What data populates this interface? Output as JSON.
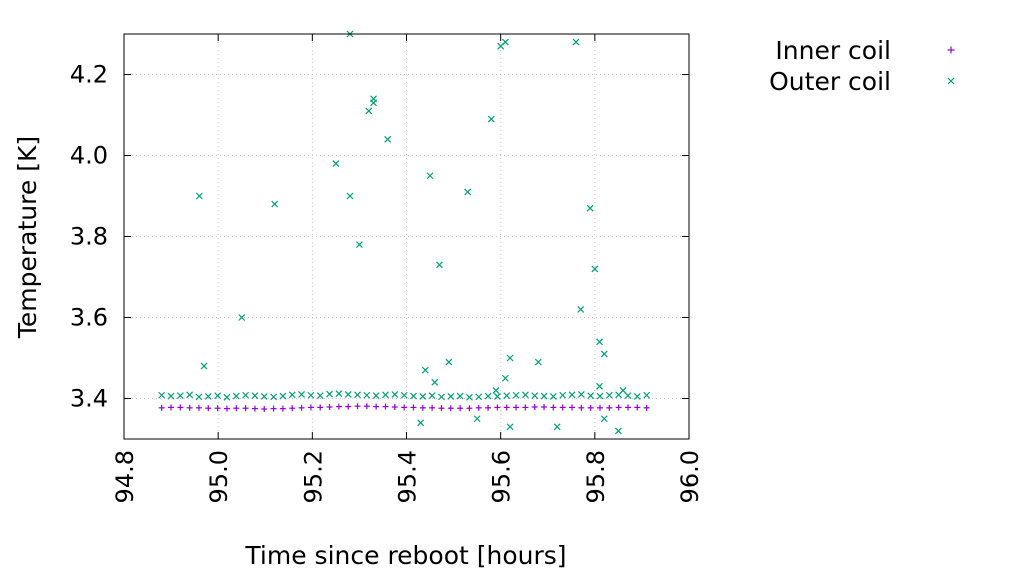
{
  "chart_data": {
    "type": "scatter",
    "xlabel": "Time since reboot [hours]",
    "ylabel": "Temperature [K]",
    "xlim": [
      94.8,
      96.0
    ],
    "ylim": [
      3.3,
      4.3
    ],
    "xticks": [
      "94.8",
      "95.0",
      "95.2",
      "95.4",
      "95.6",
      "95.8",
      "96.0"
    ],
    "yticks": [
      "3.4",
      "3.6",
      "3.8",
      "4.0",
      "4.2"
    ],
    "grid": true,
    "legend_position": "outside-right-top",
    "series": [
      {
        "name": "Inner coil",
        "marker": "plus",
        "color": "#9400d3",
        "x_range": [
          94.88,
          95.91
        ],
        "y_values": [
          3.377,
          3.378,
          3.378,
          3.377,
          3.377,
          3.376,
          3.376,
          3.375,
          3.376,
          3.376,
          3.375,
          3.374,
          3.375,
          3.375,
          3.376,
          3.377,
          3.378,
          3.378,
          3.379,
          3.38,
          3.38,
          3.381,
          3.381,
          3.38,
          3.38,
          3.379,
          3.378,
          3.378,
          3.377,
          3.377,
          3.376,
          3.376,
          3.376,
          3.376,
          3.377,
          3.377,
          3.378,
          3.378,
          3.378,
          3.378,
          3.379,
          3.379,
          3.378,
          3.378,
          3.378,
          3.377,
          3.377,
          3.377,
          3.377,
          3.378,
          3.378,
          3.378,
          3.377
        ]
      },
      {
        "name": "Outer coil",
        "marker": "cross",
        "color": "#009e73",
        "baseline": {
          "x_range": [
            94.88,
            95.91
          ],
          "y_values": [
            3.408,
            3.406,
            3.407,
            3.409,
            3.404,
            3.405,
            3.407,
            3.403,
            3.406,
            3.408,
            3.407,
            3.405,
            3.404,
            3.406,
            3.409,
            3.41,
            3.408,
            3.407,
            3.411,
            3.412,
            3.41,
            3.409,
            3.408,
            3.407,
            3.409,
            3.41,
            3.408,
            3.406,
            3.405,
            3.407,
            3.404,
            3.405,
            3.406,
            3.403,
            3.404,
            3.406,
            3.405,
            3.407,
            3.408,
            3.409,
            3.407,
            3.406,
            3.405,
            3.408,
            3.409,
            3.41,
            3.407,
            3.406,
            3.408,
            3.409,
            3.407,
            3.405,
            3.408
          ]
        },
        "outliers": [
          {
            "x": 94.96,
            "y": 3.9
          },
          {
            "x": 94.97,
            "y": 3.48
          },
          {
            "x": 95.05,
            "y": 3.6
          },
          {
            "x": 95.12,
            "y": 3.88
          },
          {
            "x": 95.25,
            "y": 3.98
          },
          {
            "x": 95.28,
            "y": 3.9
          },
          {
            "x": 95.28,
            "y": 4.3
          },
          {
            "x": 95.3,
            "y": 3.78
          },
          {
            "x": 95.32,
            "y": 4.11
          },
          {
            "x": 95.33,
            "y": 4.13
          },
          {
            "x": 95.33,
            "y": 4.14
          },
          {
            "x": 95.36,
            "y": 4.04
          },
          {
            "x": 95.43,
            "y": 3.34
          },
          {
            "x": 95.44,
            "y": 3.47
          },
          {
            "x": 95.45,
            "y": 3.95
          },
          {
            "x": 95.46,
            "y": 3.44
          },
          {
            "x": 95.47,
            "y": 3.73
          },
          {
            "x": 95.49,
            "y": 3.49
          },
          {
            "x": 95.53,
            "y": 3.91
          },
          {
            "x": 95.55,
            "y": 3.35
          },
          {
            "x": 95.58,
            "y": 4.09
          },
          {
            "x": 95.59,
            "y": 3.42
          },
          {
            "x": 95.6,
            "y": 4.27
          },
          {
            "x": 95.61,
            "y": 3.45
          },
          {
            "x": 95.61,
            "y": 4.28
          },
          {
            "x": 95.62,
            "y": 3.33
          },
          {
            "x": 95.62,
            "y": 3.5
          },
          {
            "x": 95.68,
            "y": 3.49
          },
          {
            "x": 95.72,
            "y": 3.33
          },
          {
            "x": 95.76,
            "y": 4.28
          },
          {
            "x": 95.77,
            "y": 3.62
          },
          {
            "x": 95.79,
            "y": 3.87
          },
          {
            "x": 95.8,
            "y": 3.72
          },
          {
            "x": 95.81,
            "y": 3.43
          },
          {
            "x": 95.81,
            "y": 3.54
          },
          {
            "x": 95.82,
            "y": 3.51
          },
          {
            "x": 95.82,
            "y": 3.35
          },
          {
            "x": 95.85,
            "y": 3.32
          },
          {
            "x": 95.86,
            "y": 3.42
          }
        ]
      }
    ]
  }
}
